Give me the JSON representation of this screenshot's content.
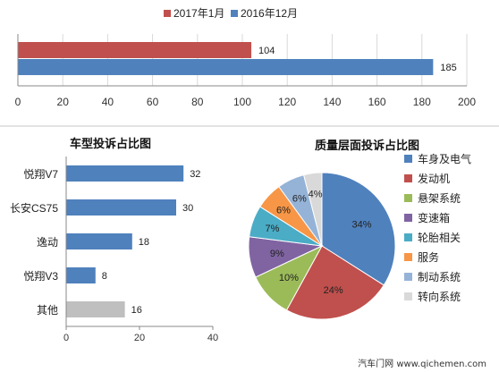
{
  "chart_data": [
    {
      "type": "bar",
      "orientation": "horizontal",
      "title": "",
      "series": [
        {
          "name": "2017年1月",
          "values": [
            104
          ],
          "color": "#C0504D"
        },
        {
          "name": "2016年12月",
          "values": [
            185
          ],
          "color": "#4F81BD"
        }
      ],
      "xlim": [
        0,
        200
      ],
      "xticks": [
        "0",
        "20",
        "40",
        "60",
        "80",
        "100",
        "120",
        "140",
        "160",
        "180",
        "200"
      ],
      "legend": "top-center",
      "grid": true
    },
    {
      "type": "bar",
      "orientation": "horizontal",
      "title": "车型投诉占比图",
      "categories": [
        "悦翔V7",
        "长安CS75",
        "逸动",
        "悦翔V3",
        "其他"
      ],
      "values": [
        32,
        30,
        18,
        8,
        16
      ],
      "colors": [
        "#4F81BD",
        "#4F81BD",
        "#4F81BD",
        "#4F81BD",
        "#BFBFBF"
      ],
      "xlim": [
        0,
        40
      ],
      "xticks": [
        "0",
        "20",
        "40"
      ],
      "grid": false
    },
    {
      "type": "pie",
      "title": "质量层面投诉占比图",
      "categories": [
        "车身及电气",
        "发动机",
        "悬架系统",
        "变速箱",
        "轮胎相关",
        "服务",
        "制动系统",
        "转向系统"
      ],
      "values": [
        34,
        24,
        10,
        9,
        7,
        6,
        6,
        4
      ],
      "labels": [
        "34%",
        "24%",
        "10%",
        "9%",
        "7%",
        "6%",
        "6%",
        "4%"
      ],
      "colors": [
        "#4F81BD",
        "#C0504D",
        "#9BBB59",
        "#8064A2",
        "#4BACC6",
        "#F79646",
        "#95B3D7",
        "#D9D9D9"
      ],
      "legend": "right"
    }
  ],
  "footer": {
    "credit": "汽车门网 www.qichemen.com"
  }
}
